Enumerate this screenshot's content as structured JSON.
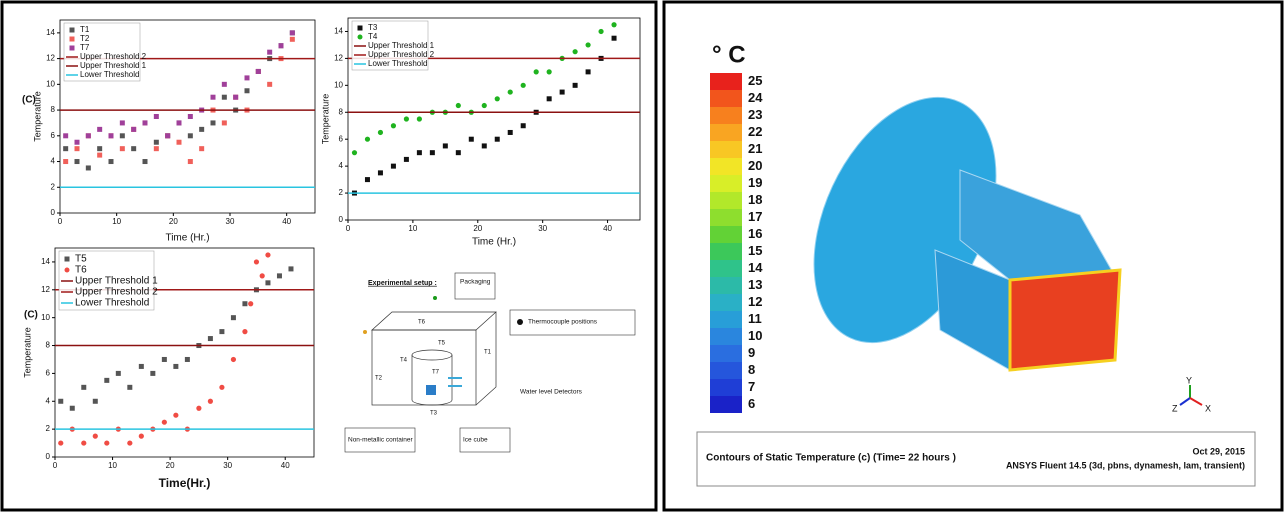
{
  "chart_data": [
    {
      "type": "scatter",
      "x_label": "Time (Hr.)",
      "y_label": "Temperature",
      "annotation": "(C)",
      "xlim": [
        0,
        45
      ],
      "xticks": [
        0,
        10,
        20,
        30,
        40
      ],
      "ylim": [
        0,
        15
      ],
      "yticks": [
        0,
        2,
        4,
        6,
        8,
        10,
        12,
        14
      ],
      "legend": "top-left",
      "series": [
        {
          "name": "T1",
          "color": "#555555",
          "marker": "square",
          "x": [
            1,
            3,
            5,
            7,
            9,
            11,
            13,
            15,
            17,
            19,
            21,
            23,
            25,
            27,
            29,
            31,
            33,
            35,
            37,
            39,
            41
          ],
          "values": [
            5,
            4,
            3.5,
            5,
            4,
            6,
            5,
            4,
            5.5,
            6,
            7,
            6,
            6.5,
            7,
            9,
            8,
            9.5,
            11,
            12,
            13,
            14
          ]
        },
        {
          "name": "T2",
          "color": "#f0605a",
          "marker": "square",
          "x": [
            1,
            3,
            5,
            7,
            9,
            11,
            13,
            15,
            17,
            19,
            21,
            23,
            25,
            27,
            29,
            31,
            33,
            35,
            37,
            39,
            41
          ],
          "values": [
            4,
            5,
            6,
            4.5,
            6,
            5,
            6.5,
            7,
            5,
            6,
            5.5,
            4,
            5,
            8,
            7,
            9,
            8,
            11,
            10,
            12,
            13.5
          ]
        },
        {
          "name": "T7",
          "color": "#a0409a",
          "marker": "square",
          "x": [
            1,
            3,
            5,
            7,
            9,
            11,
            13,
            15,
            17,
            19,
            21,
            23,
            25,
            27,
            29,
            31,
            33,
            35,
            37,
            39,
            41
          ],
          "values": [
            6,
            5.5,
            6,
            6.5,
            6,
            7,
            6.5,
            7,
            7.5,
            6,
            7,
            7.5,
            8,
            9,
            10,
            9,
            10.5,
            11,
            12.5,
            13,
            14
          ]
        }
      ],
      "reference_lines": [
        {
          "name": "Upper Threshold 2",
          "color": "#a01818",
          "value": 12
        },
        {
          "name": "Upper Threshold 1",
          "color": "#8b1010",
          "value": 8
        },
        {
          "name": "Lower  Threshold",
          "color": "#29c4e0",
          "value": 2
        }
      ]
    },
    {
      "type": "scatter",
      "x_label": "Time (Hr.)",
      "y_label": "Temperature",
      "xlim": [
        0,
        45
      ],
      "xticks": [
        0,
        10,
        20,
        30,
        40
      ],
      "ylim": [
        0,
        15
      ],
      "yticks": [
        0,
        2,
        4,
        6,
        8,
        10,
        12,
        14
      ],
      "legend": "top-left",
      "series": [
        {
          "name": "T3",
          "color": "#111111",
          "marker": "square",
          "x": [
            1,
            3,
            5,
            7,
            9,
            11,
            13,
            15,
            17,
            19,
            21,
            23,
            25,
            27,
            29,
            31,
            33,
            35,
            37,
            39,
            41
          ],
          "values": [
            2,
            3,
            3.5,
            4,
            4.5,
            5,
            5,
            5.5,
            5,
            6,
            5.5,
            6,
            6.5,
            7,
            8,
            9,
            9.5,
            10,
            11,
            12,
            13.5
          ]
        },
        {
          "name": "T4",
          "color": "#1fb31f",
          "marker": "circle",
          "x": [
            1,
            3,
            5,
            7,
            9,
            11,
            13,
            15,
            17,
            19,
            21,
            23,
            25,
            27,
            29,
            31,
            33,
            35,
            37,
            39,
            41
          ],
          "values": [
            5,
            6,
            6.5,
            7,
            7.5,
            7.5,
            8,
            8,
            8.5,
            8,
            8.5,
            9,
            9.5,
            10,
            11,
            11,
            12,
            12.5,
            13,
            14,
            14.5
          ]
        }
      ],
      "reference_lines": [
        {
          "name": "Upper Threshold 1",
          "color": "#8b1010",
          "value": 8
        },
        {
          "name": "Upper Threshold 2",
          "color": "#a01818",
          "value": 12
        },
        {
          "name": "Lower Threshold",
          "color": "#29c4e0",
          "value": 2
        }
      ]
    },
    {
      "type": "scatter",
      "x_label": "Time(Hr.)",
      "y_label": "Temperature",
      "annotation": "(C)",
      "xlim": [
        0,
        45
      ],
      "xticks": [
        0,
        10,
        20,
        30,
        40
      ],
      "ylim": [
        0,
        15
      ],
      "yticks": [
        0,
        2,
        4,
        6,
        8,
        10,
        12,
        14
      ],
      "legend": "top-left",
      "series": [
        {
          "name": "T5",
          "color": "#555555",
          "marker": "square",
          "x": [
            1,
            3,
            5,
            7,
            9,
            11,
            13,
            15,
            17,
            19,
            21,
            23,
            25,
            27,
            29,
            31,
            33,
            35,
            37,
            39,
            41
          ],
          "values": [
            4,
            3.5,
            5,
            4,
            5.5,
            6,
            5,
            6.5,
            6,
            7,
            6.5,
            7,
            8,
            8.5,
            9,
            10,
            11,
            12,
            12.5,
            13,
            13.5
          ]
        },
        {
          "name": "T6",
          "color": "#f04c44",
          "marker": "circle",
          "x": [
            1,
            3,
            5,
            7,
            9,
            11,
            13,
            15,
            17,
            19,
            21,
            23,
            25,
            27,
            29,
            31,
            33,
            34,
            35,
            36,
            37
          ],
          "values": [
            1,
            2,
            1,
            1.5,
            1,
            2,
            1,
            1.5,
            2,
            2.5,
            3,
            2,
            3.5,
            4,
            5,
            7,
            9,
            11,
            14,
            13,
            14.5
          ]
        }
      ],
      "reference_lines": [
        {
          "name": "Upper Threshold 1",
          "color": "#8b1010",
          "value": 8
        },
        {
          "name": "Upper Threshold 2",
          "color": "#a01818",
          "value": 12
        },
        {
          "name": "Lower  Threshold",
          "color": "#29c4e0",
          "value": 2
        }
      ]
    }
  ],
  "setup_diagram": {
    "title": "Experimental setup :",
    "labels": [
      "Packaging",
      "Thermocouple positions",
      "T6",
      "T5",
      "T4",
      "T7",
      "T1",
      "T2",
      "T3",
      "Water level Detectors",
      "Non-metallic container",
      "Ice cube"
    ]
  },
  "contour_plot": {
    "unit": "° C",
    "levels": [
      25,
      24,
      23,
      22,
      21,
      20,
      19,
      18,
      17,
      16,
      15,
      14,
      13,
      12,
      11,
      10,
      9,
      8,
      7,
      6
    ],
    "colors": [
      "#e8221c",
      "#f2551c",
      "#f7801e",
      "#f9a522",
      "#f8c724",
      "#f2e526",
      "#d8ee28",
      "#b2e82a",
      "#8ede2e",
      "#62d236",
      "#3cc85a",
      "#2fc38a",
      "#2cbaa8",
      "#2ab0c6",
      "#289ed8",
      "#2a86de",
      "#2a6ee0",
      "#2556dc",
      "#1f3ed6",
      "#1a22c8"
    ],
    "caption": "Contours of Static Temperature (c) (Time=  22 hours   )",
    "date": "Oct 29, 2015",
    "software": "ANSYS Fluent 14.5 (3d, pbns, dynamesh, lam, transient)",
    "axes": [
      "Y",
      "Z",
      "X"
    ]
  }
}
